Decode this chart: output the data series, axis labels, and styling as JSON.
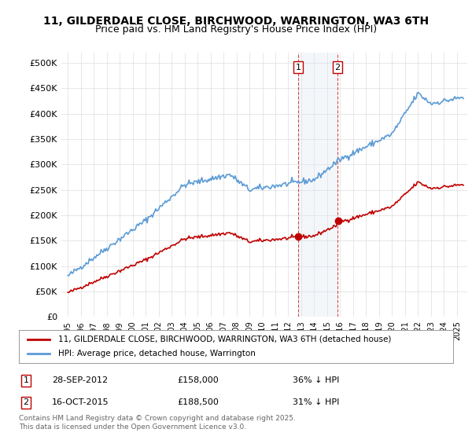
{
  "title_line1": "11, GILDERDALE CLOSE, BIRCHWOOD, WARRINGTON, WA3 6TH",
  "title_line2": "Price paid vs. HM Land Registry's House Price Index (HPI)",
  "ylabel": "",
  "ylim": [
    0,
    520000
  ],
  "yticks": [
    0,
    50000,
    100000,
    150000,
    200000,
    250000,
    300000,
    350000,
    400000,
    450000,
    500000
  ],
  "yticklabels": [
    "£0",
    "£50K",
    "£100K",
    "£150K",
    "£200K",
    "£250K",
    "£300K",
    "£350K",
    "£400K",
    "£450K",
    "£500K"
  ],
  "hpi_color": "#5b9bd5",
  "paid_color": "#c00000",
  "marker_color_paid": "#c00000",
  "purchase1_date": 2012.75,
  "purchase1_price": 158000,
  "purchase2_date": 2015.79,
  "purchase2_price": 188500,
  "purchase1_label": "28-SEP-2012",
  "purchase1_amount": "£158,000",
  "purchase1_hpi": "36% ↓ HPI",
  "purchase2_label": "16-OCT-2015",
  "purchase2_amount": "£188,500",
  "purchase2_hpi": "31% ↓ HPI",
  "legend_paid": "11, GILDERDALE CLOSE, BIRCHWOOD, WARRINGTON, WA3 6TH (detached house)",
  "legend_hpi": "HPI: Average price, detached house, Warrington",
  "copyright_text": "Contains HM Land Registry data © Crown copyright and database right 2025.\nThis data is licensed under the Open Government Licence v3.0.",
  "background_color": "#ffffff",
  "grid_color": "#dddddd",
  "shaded_color": "#dce6f1"
}
